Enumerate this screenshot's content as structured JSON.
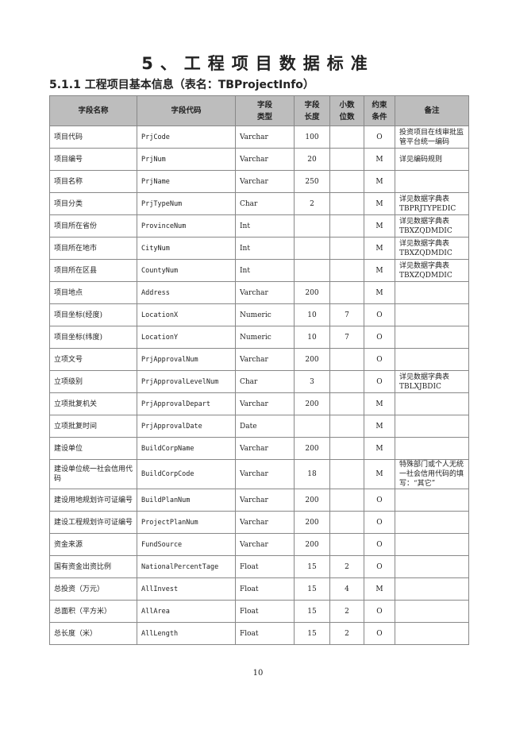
{
  "title": "5、工程项目数据标准",
  "section": "5.1.1 工程项目基本信息（表名：TBProjectInfo）",
  "headers": [
    "字段名称",
    "字段代码",
    "字段\n类型",
    "字段\n长度",
    "小数\n位数",
    "约束\n条件",
    "备注"
  ],
  "rows": [
    [
      "项目代码",
      "PrjCode",
      "Varchar",
      "100",
      "",
      "O",
      "投资项目在线审批监管平台统一编码"
    ],
    [
      "项目编号",
      "PrjNum",
      "Varchar",
      "20",
      "",
      "M",
      "详见编码规则"
    ],
    [
      "项目名称",
      "PrjName",
      "Varchar",
      "250",
      "",
      "M",
      ""
    ],
    [
      "项目分类",
      "PrjTypeNum",
      "Char",
      "2",
      "",
      "M",
      "详见数据字典表TBPRJTYPEDIC"
    ],
    [
      "项目所在省份",
      "ProvinceNum",
      "Int",
      "",
      "",
      "M",
      "详见数据字典表TBXZQDMDIC"
    ],
    [
      "项目所在地市",
      "CityNum",
      "Int",
      "",
      "",
      "M",
      "详见数据字典表TBXZQDMDIC"
    ],
    [
      "项目所在区县",
      "CountyNum",
      "Int",
      "",
      "",
      "M",
      "详见数据字典表TBXZQDMDIC"
    ],
    [
      "项目地点",
      "Address",
      "Varchar",
      "200",
      "",
      "M",
      ""
    ],
    [
      "项目坐标(经度)",
      "LocationX",
      "Numeric",
      "10",
      "7",
      "O",
      ""
    ],
    [
      "项目坐标(纬度)",
      "LocationY",
      "Numeric",
      "10",
      "7",
      "O",
      ""
    ],
    [
      "立项文号",
      "PrjApprovalNum",
      "Varchar",
      "200",
      "",
      "O",
      ""
    ],
    [
      "立项级别",
      "PrjApprovalLevelNum",
      "Char",
      "3",
      "",
      "O",
      "详见数据字典表TBLXJBDIC"
    ],
    [
      "立项批复机关",
      "PrjApprovalDepart",
      "Varchar",
      "200",
      "",
      "M",
      ""
    ],
    [
      "立项批复时间",
      "PrjApprovalDate",
      "Date",
      "",
      "",
      "M",
      ""
    ],
    [
      "建设单位",
      "BuildCorpName",
      "Varchar",
      "200",
      "",
      "M",
      ""
    ],
    [
      "建设单位统一社会信用代码",
      "BuildCorpCode",
      "Varchar",
      "18",
      "",
      "M",
      "特殊部门或个人无统一社会信用代码的填写：“其它”"
    ],
    [
      "建设用地规划许可证编号",
      "BuildPlanNum",
      "Varchar",
      "200",
      "",
      "O",
      ""
    ],
    [
      "建设工程规划许可证编号",
      "ProjectPlanNum",
      "Varchar",
      "200",
      "",
      "O",
      ""
    ],
    [
      "资金来源",
      "FundSource",
      "Varchar",
      "200",
      "",
      "O",
      ""
    ],
    [
      "国有资金出资比例",
      "NationalPercentTage",
      "Float",
      "15",
      "2",
      "O",
      ""
    ],
    [
      "总投资（万元）",
      "AllInvest",
      "Float",
      "15",
      "4",
      "M",
      ""
    ],
    [
      "总面积（平方米）",
      "AllArea",
      "Float",
      "15",
      "2",
      "O",
      ""
    ],
    [
      "总长度（米）",
      "AllLength",
      "Float",
      "15",
      "2",
      "O",
      ""
    ]
  ],
  "page_number": "10"
}
